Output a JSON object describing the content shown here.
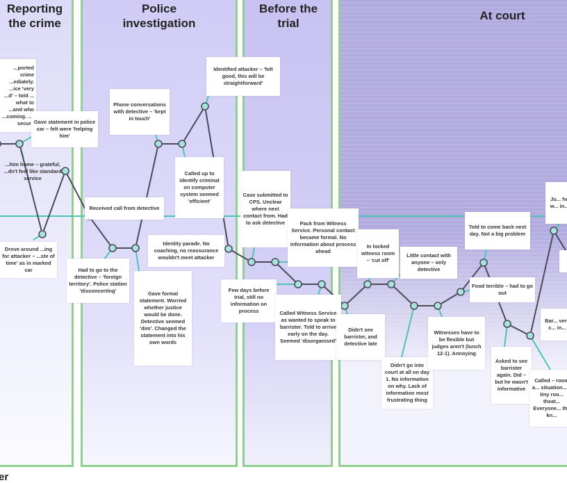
{
  "phases": [
    "Reporting\nthe crime",
    "Police\ninvestigation",
    "Before the\ntrial",
    "At court"
  ],
  "notes": [
    "...ported crime ...ediately. ...ice 'very ...d' – told ... what to ...and who ...coming. ...t secure",
    "Gave statement in police car – felt were 'helping him'",
    "...him home – grateful, ...dn't feel like standard service",
    "Drove around ...ing for attacker – ...ste of time' as in marked car",
    "Received call from detective",
    "Phone conversations with detective – 'kept in touch'",
    "Identified attacker – 'felt good, this will be straightforward'",
    "Called up to identify criminal on computer system seemed 'efficient'",
    "Identity parade. No coaching, no reassurance wouldn't meet attacker",
    "Had to go to the detective – 'foreign territory'. Police station 'disconcerting'",
    "Gave formal statement. Worried whether justice would be done. Detective seemed 'dim'. Changed the statement into his own words",
    "Case submitted to CPS. Unclear where next contact from. Had to ask detective",
    "Few days before trial, still no information on process",
    "Pack from Witness Service. Personal contact became formal. No information about process ahead",
    "Called Witness Service as wanted to speak to barrister. Told to arrive early on the day. Seemed 'disorganised'",
    "Didn't see barrister, and detective late",
    "In locked witness room – 'cut off'",
    "Little contact with anyone – only detective",
    "Didn't go into court at all on day 1. No information on why. Lack of information most frustrating thing",
    "Witnesses have to be flexible but judges aren't (lunch 12-1). Annoying",
    "Told to come back next day. Not a big problem",
    "Food terrible – had to go out",
    "Asked to see barrister again. Did – but he wasn't informative",
    "Ju... he w... in...",
    "",
    "Bar... very c... in...",
    "Called – room a... situation... a tiny roo... theat... Everyone... the kn..."
  ],
  "footer": "er",
  "colors": {
    "line": "#4a4a5a",
    "node": "#a8e4dc",
    "connector": "#4cc4b4",
    "divider": "#8fd08f"
  }
}
